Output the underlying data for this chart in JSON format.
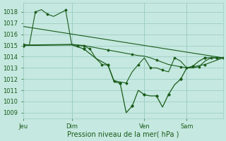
{
  "background_color": "#c5e8e0",
  "grid_color": "#9ecec5",
  "line_color": "#1a5c1a",
  "xlabel": "Pression niveau de la mer( hPa )",
  "ylim": [
    1008.5,
    1018.8
  ],
  "yticks": [
    1009,
    1010,
    1011,
    1012,
    1013,
    1014,
    1015,
    1016,
    1017,
    1018
  ],
  "xtick_labels": [
    "Jeu",
    "Dim",
    "Ven",
    "Sam"
  ],
  "xtick_positions": [
    0,
    16,
    40,
    54
  ],
  "xlim": [
    0,
    66
  ],
  "line1_x": [
    0,
    66
  ],
  "line1_y": [
    1016.7,
    1013.9
  ],
  "line2_x": [
    0,
    2,
    16,
    18,
    20,
    22,
    24,
    26,
    28,
    30,
    32,
    34,
    36,
    38,
    40,
    42,
    44,
    46,
    48,
    50,
    52,
    54,
    56,
    58,
    60,
    62,
    64,
    66
  ],
  "line2_y": [
    1015.1,
    1015.05,
    1015.1,
    1015.05,
    1015.0,
    1014.9,
    1014.8,
    1014.7,
    1014.6,
    1014.5,
    1014.4,
    1014.3,
    1014.2,
    1014.1,
    1014.05,
    1013.9,
    1013.7,
    1013.5,
    1013.3,
    1013.2,
    1013.1,
    1013.0,
    1013.1,
    1013.2,
    1013.3,
    1013.5,
    1013.7,
    1013.9
  ],
  "line3_x": [
    0,
    2,
    4,
    6,
    8,
    10,
    14,
    16,
    18,
    20,
    22,
    24,
    26,
    28,
    30,
    32,
    34,
    36,
    38,
    40,
    42,
    44,
    46,
    48,
    50,
    52,
    54,
    56,
    58,
    60,
    62,
    64,
    66
  ],
  "line3_y": [
    1015.0,
    1015.05,
    1018.0,
    1018.2,
    1017.8,
    1017.6,
    1018.15,
    1015.1,
    1015.0,
    1014.95,
    1014.7,
    1013.85,
    1013.3,
    1013.25,
    1011.85,
    1011.75,
    1011.65,
    1012.65,
    1013.3,
    1013.9,
    1013.0,
    1013.0,
    1012.8,
    1012.65,
    1013.9,
    1013.6,
    1013.0,
    1013.0,
    1013.1,
    1013.6,
    1013.9,
    1013.9,
    1013.9
  ],
  "line4_x": [
    0,
    16,
    20,
    24,
    28,
    30,
    32,
    34,
    36,
    38,
    40,
    42,
    44,
    46,
    48,
    50,
    52,
    54,
    56,
    58,
    60,
    62,
    64,
    66
  ],
  "line4_y": [
    1015.0,
    1015.05,
    1014.7,
    1013.85,
    1013.25,
    1011.75,
    1011.65,
    1009.0,
    1009.6,
    1011.0,
    1010.6,
    1010.5,
    1010.5,
    1009.5,
    1010.65,
    1011.5,
    1012.0,
    1013.0,
    1013.15,
    1013.6,
    1013.9,
    1013.9,
    1013.9,
    1013.9
  ]
}
